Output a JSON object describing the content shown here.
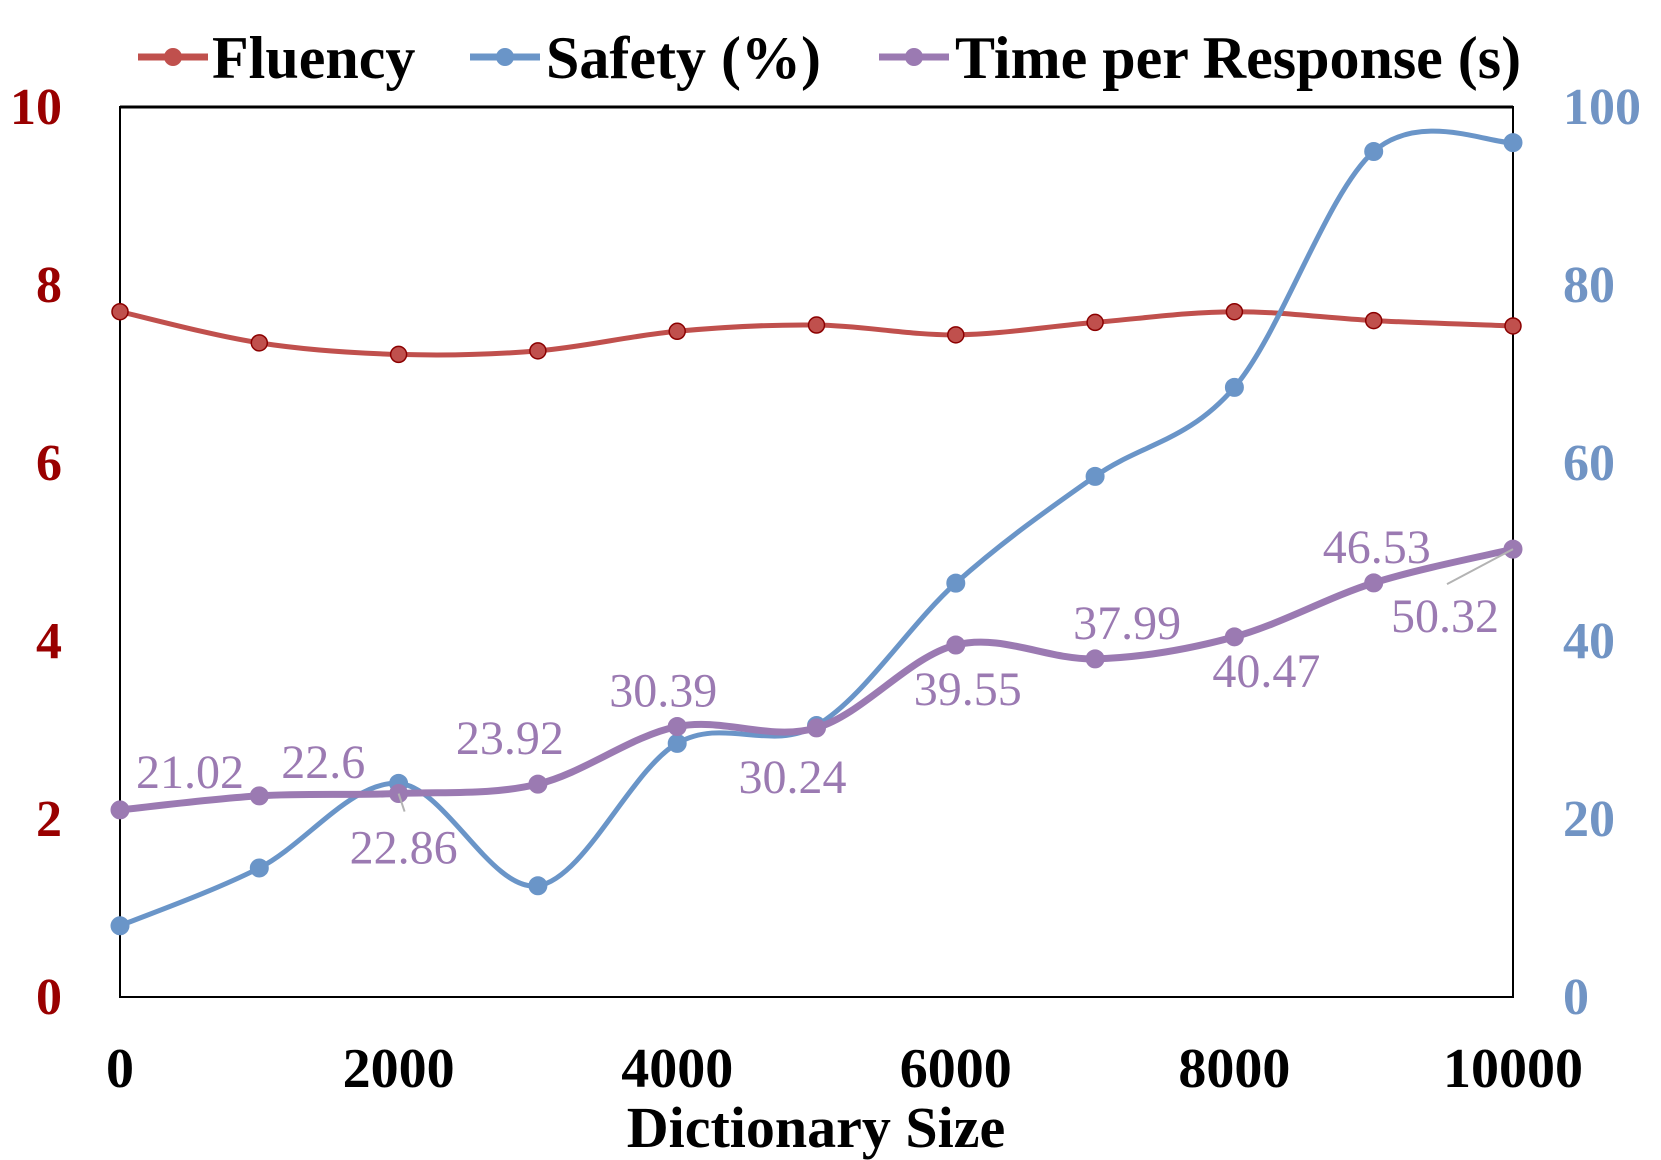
{
  "chart_data": {
    "type": "line",
    "title": "",
    "xlabel": "Dictionary Size",
    "x": [
      0,
      1000,
      2000,
      3000,
      4000,
      5000,
      6000,
      7000,
      8000,
      9000,
      10000
    ],
    "x_ticks": [
      "0",
      "2000",
      "4000",
      "6000",
      "8000",
      "10000"
    ],
    "xlim": [
      0,
      10000
    ],
    "y_left": {
      "ylim": [
        0,
        10
      ],
      "ticks": [
        "0",
        "2",
        "4",
        "6",
        "8",
        "10"
      ],
      "color": "#990000"
    },
    "y_right": {
      "ylim": [
        0,
        100
      ],
      "ticks": [
        "0",
        "20",
        "40",
        "60",
        "80",
        "100"
      ],
      "color": "#7194c4"
    },
    "legend_position": "top",
    "grid": false,
    "series": [
      {
        "name": "Fluency",
        "axis": "left",
        "color": "#c0504d",
        "values": [
          7.7,
          7.35,
          7.22,
          7.26,
          7.48,
          7.55,
          7.44,
          7.58,
          7.7,
          7.6,
          7.54
        ]
      },
      {
        "name": "Safety (%)",
        "axis": "right",
        "color": "#6a95c8",
        "values": [
          8,
          14.5,
          24,
          12.5,
          28.5,
          30.5,
          46.5,
          58.5,
          68.5,
          95,
          96
        ]
      },
      {
        "name": "Time per Response (s)",
        "axis": "right",
        "color": "#9b7ab2",
        "values": [
          21.02,
          22.6,
          22.86,
          23.92,
          30.39,
          30.24,
          39.55,
          37.99,
          40.47,
          46.53,
          50.32
        ],
        "labels": [
          "21.02",
          "22.6",
          "22.86",
          "23.92",
          "30.39",
          "30.24",
          "39.55",
          "37.99",
          "40.47",
          "46.53",
          "50.32"
        ]
      }
    ]
  }
}
